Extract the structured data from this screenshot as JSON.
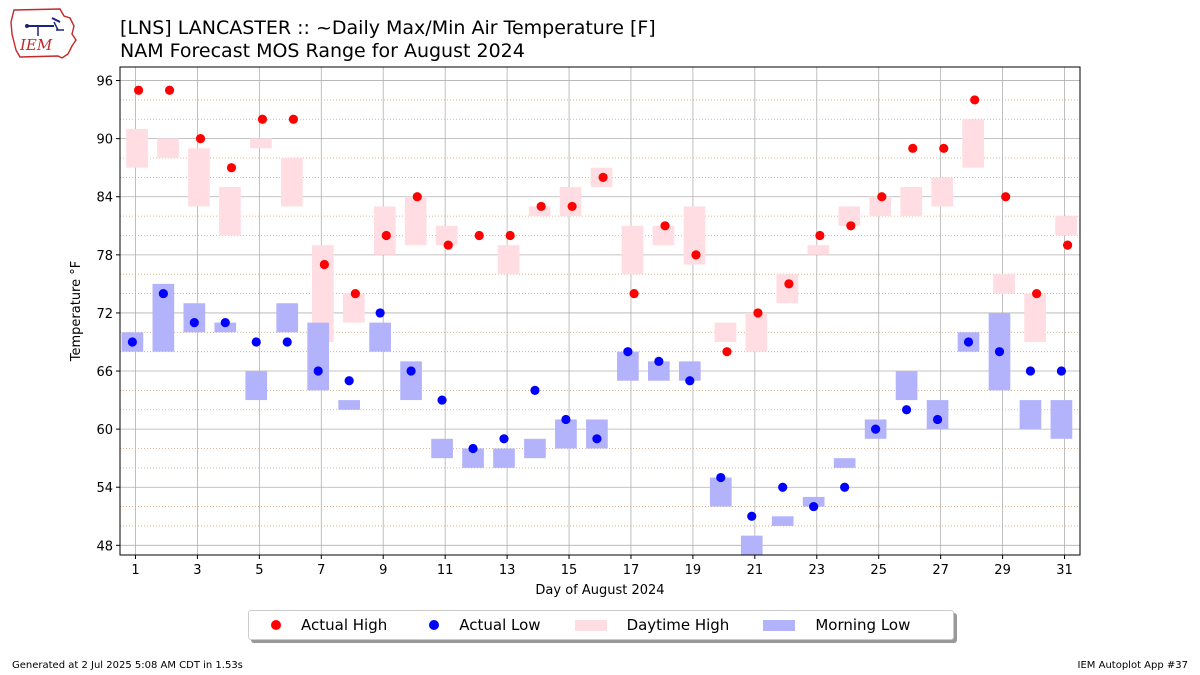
{
  "header": {
    "logo_text": "IEM",
    "title_line1": "[LNS] LANCASTER :: ~Daily Max/Min Air Temperature [F]",
    "title_line2": "NAM Forecast MOS Range for August 2024"
  },
  "footer": {
    "left": "Generated at 2 Jul 2025 5:08 AM CDT in 1.53s",
    "right": "IEM Autoplot App #37"
  },
  "legend": {
    "actual_high": "Actual High",
    "actual_low": "Actual Low",
    "daytime_high": "Daytime High",
    "morning_low": "Morning Low"
  },
  "colors": {
    "actual_high": "#ff0000",
    "actual_low": "#0000ff",
    "daytime_high": "#ffdde3",
    "morning_low": "#b3b3fb"
  },
  "chart_data": {
    "type": "scatter",
    "xlabel": "Day of August 2024",
    "ylabel": "Temperature °F",
    "xlim": [
      0.5,
      31.5
    ],
    "ylim": [
      47,
      97.4
    ],
    "x_ticks": [
      1,
      3,
      5,
      7,
      9,
      11,
      13,
      15,
      17,
      19,
      21,
      23,
      25,
      27,
      29,
      31
    ],
    "y_ticks": [
      48,
      54,
      60,
      66,
      72,
      78,
      84,
      90,
      96
    ],
    "y_minor_ticks": [
      50,
      52,
      56,
      58,
      62,
      64,
      68,
      70,
      74,
      76,
      80,
      82,
      86,
      88,
      92,
      94
    ],
    "grid": true,
    "legend_position": "below",
    "daytime_high_range": [
      [
        1,
        87,
        91
      ],
      [
        2,
        88,
        90
      ],
      [
        3,
        83,
        89
      ],
      [
        4,
        80,
        85
      ],
      [
        5,
        89,
        90
      ],
      [
        6,
        83,
        88
      ],
      [
        7,
        69,
        79
      ],
      [
        8,
        71,
        74
      ],
      [
        9,
        78,
        83
      ],
      [
        10,
        79,
        84
      ],
      [
        11,
        79,
        81
      ],
      [
        12,
        null,
        null
      ],
      [
        13,
        76,
        79
      ],
      [
        14,
        82,
        83
      ],
      [
        15,
        82,
        85
      ],
      [
        16,
        85,
        87
      ],
      [
        17,
        76,
        81
      ],
      [
        18,
        79,
        81
      ],
      [
        19,
        77,
        83
      ],
      [
        20,
        69,
        71
      ],
      [
        21,
        68,
        72
      ],
      [
        22,
        73,
        76
      ],
      [
        23,
        78,
        79
      ],
      [
        24,
        81,
        83
      ],
      [
        25,
        82,
        84
      ],
      [
        26,
        82,
        85
      ],
      [
        27,
        83,
        86
      ],
      [
        28,
        87,
        92
      ],
      [
        29,
        74,
        76
      ],
      [
        30,
        69,
        74
      ],
      [
        31,
        80,
        82
      ]
    ],
    "morning_low_range": [
      [
        1,
        68,
        70
      ],
      [
        2,
        68,
        75
      ],
      [
        3,
        70,
        73
      ],
      [
        4,
        70,
        71
      ],
      [
        5,
        63,
        66
      ],
      [
        6,
        70,
        73
      ],
      [
        7,
        64,
        71
      ],
      [
        8,
        62,
        63
      ],
      [
        9,
        68,
        71
      ],
      [
        10,
        63,
        67
      ],
      [
        11,
        57,
        59
      ],
      [
        12,
        56,
        58
      ],
      [
        13,
        56,
        58
      ],
      [
        14,
        57,
        59
      ],
      [
        15,
        58,
        61
      ],
      [
        16,
        58,
        61
      ],
      [
        17,
        65,
        68
      ],
      [
        18,
        65,
        67
      ],
      [
        19,
        65,
        67
      ],
      [
        20,
        52,
        55
      ],
      [
        21,
        47,
        49
      ],
      [
        22,
        50,
        51
      ],
      [
        23,
        52,
        53
      ],
      [
        24,
        56,
        57
      ],
      [
        25,
        59,
        61
      ],
      [
        26,
        63,
        66
      ],
      [
        27,
        60,
        63
      ],
      [
        28,
        68,
        70
      ],
      [
        29,
        64,
        72
      ],
      [
        30,
        60,
        63
      ],
      [
        31,
        59,
        63
      ]
    ],
    "actual_high": [
      [
        1,
        95
      ],
      [
        2,
        95
      ],
      [
        3,
        90
      ],
      [
        4,
        87
      ],
      [
        5,
        92
      ],
      [
        6,
        92
      ],
      [
        7,
        77
      ],
      [
        8,
        74
      ],
      [
        9,
        80
      ],
      [
        10,
        84
      ],
      [
        11,
        79
      ],
      [
        12,
        80
      ],
      [
        13,
        80
      ],
      [
        14,
        83
      ],
      [
        15,
        83
      ],
      [
        16,
        86
      ],
      [
        17,
        74
      ],
      [
        18,
        81
      ],
      [
        19,
        78
      ],
      [
        20,
        68
      ],
      [
        21,
        72
      ],
      [
        22,
        75
      ],
      [
        23,
        80
      ],
      [
        24,
        81
      ],
      [
        25,
        84
      ],
      [
        26,
        89
      ],
      [
        27,
        89
      ],
      [
        28,
        94
      ],
      [
        29,
        84
      ],
      [
        30,
        74
      ],
      [
        31,
        79
      ]
    ],
    "actual_low": [
      [
        1,
        69
      ],
      [
        2,
        74
      ],
      [
        3,
        71
      ],
      [
        4,
        71
      ],
      [
        5,
        69
      ],
      [
        6,
        69
      ],
      [
        7,
        66
      ],
      [
        8,
        65
      ],
      [
        9,
        72
      ],
      [
        10,
        66
      ],
      [
        11,
        63
      ],
      [
        12,
        58
      ],
      [
        13,
        59
      ],
      [
        14,
        64
      ],
      [
        15,
        61
      ],
      [
        16,
        59
      ],
      [
        17,
        68
      ],
      [
        18,
        67
      ],
      [
        19,
        65
      ],
      [
        20,
        55
      ],
      [
        21,
        51
      ],
      [
        22,
        54
      ],
      [
        23,
        52
      ],
      [
        24,
        54
      ],
      [
        25,
        60
      ],
      [
        26,
        62
      ],
      [
        27,
        61
      ],
      [
        28,
        69
      ],
      [
        29,
        68
      ],
      [
        30,
        66
      ],
      [
        31,
        66
      ]
    ]
  }
}
